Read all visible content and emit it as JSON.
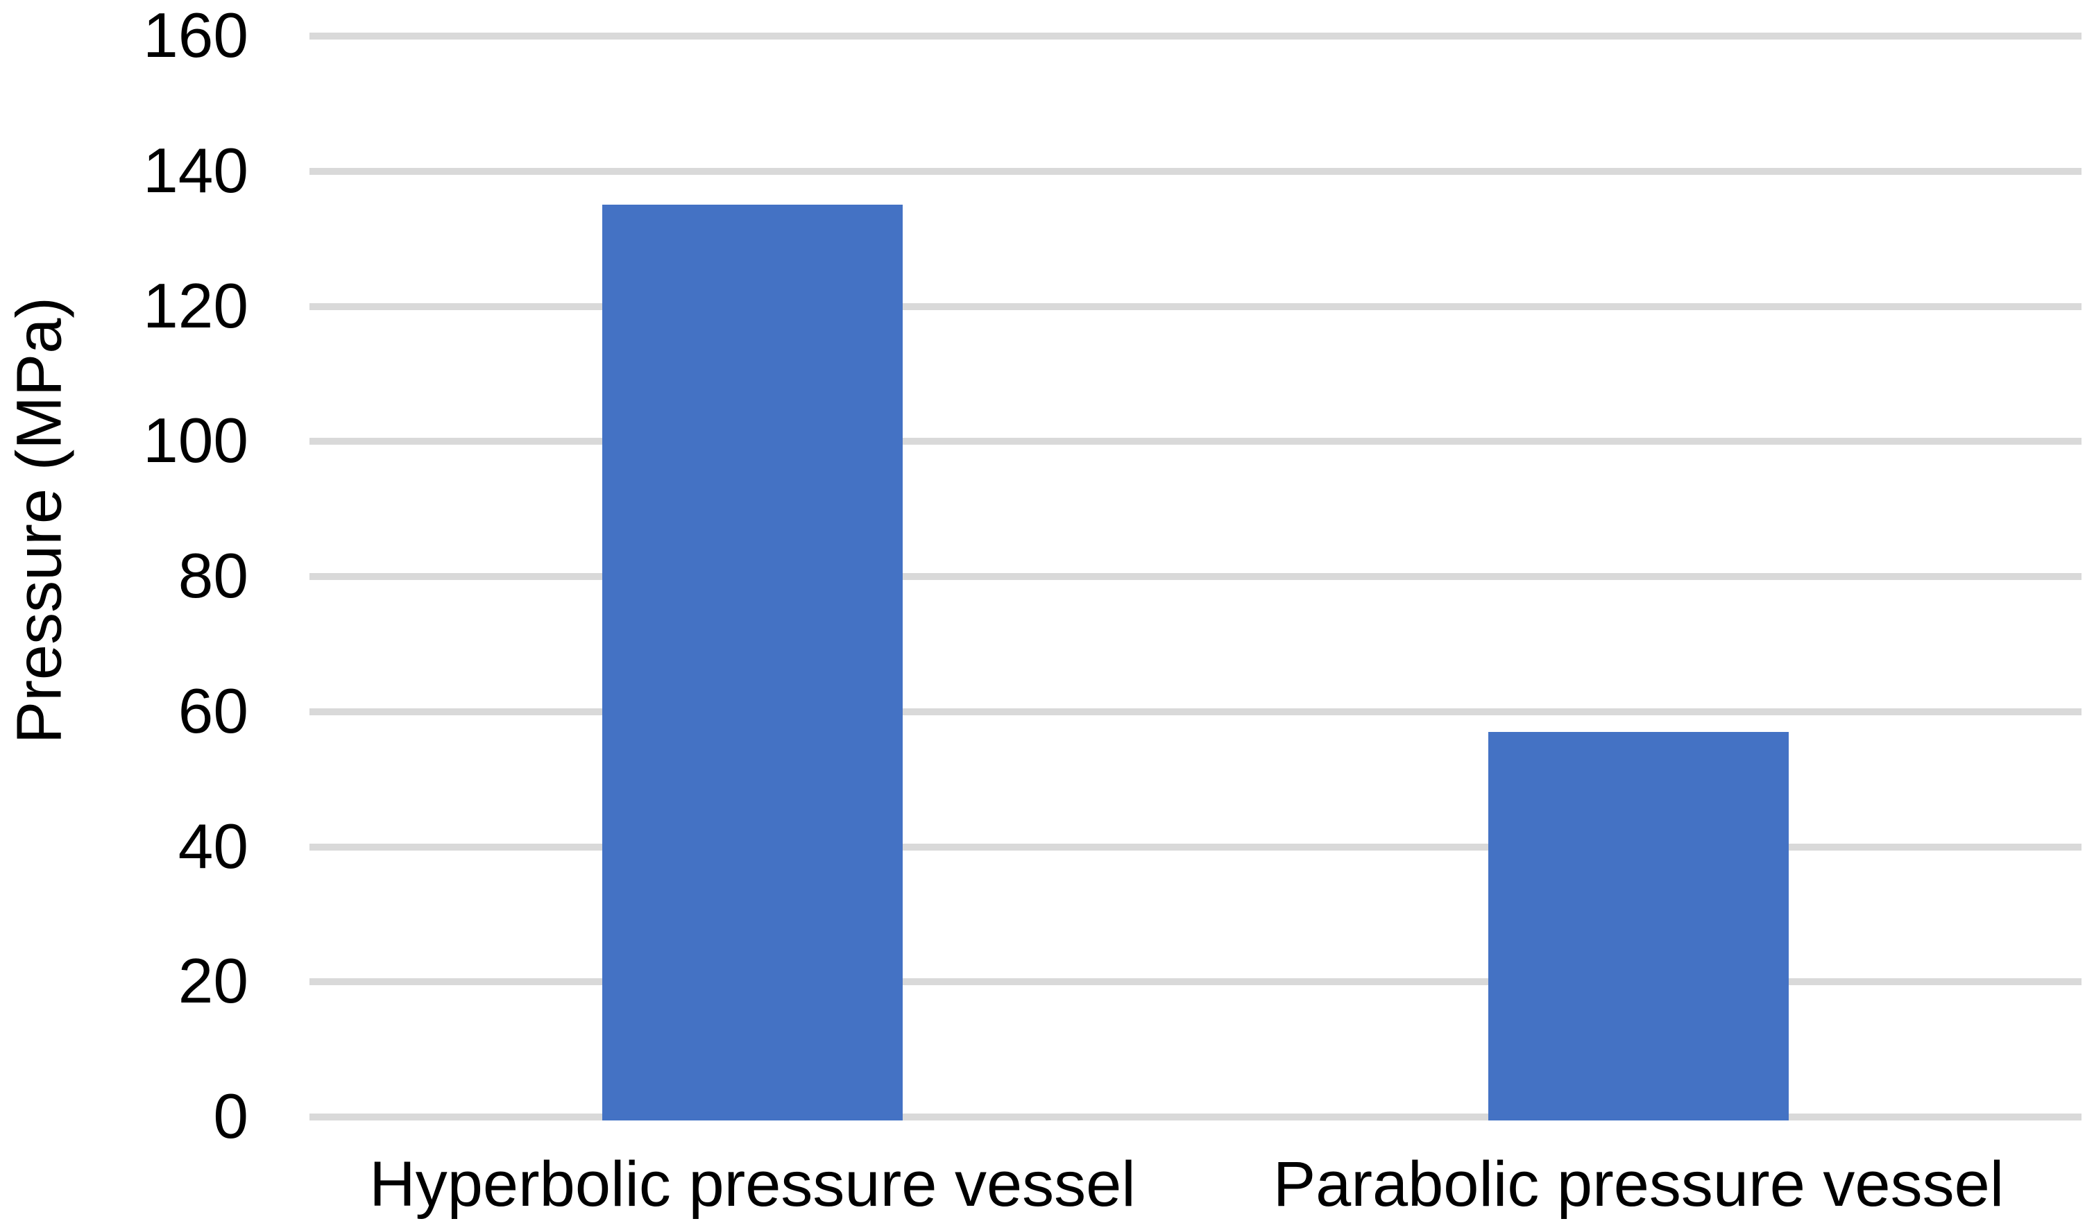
{
  "chart_data": {
    "type": "bar",
    "categories": [
      "Hyperbolic pressure vessel",
      "Parabolic pressure vessel"
    ],
    "values": [
      135,
      57
    ],
    "ylabel": "Pressure (MPa)",
    "ylim": [
      0,
      160
    ],
    "yticks": [
      0,
      20,
      40,
      60,
      80,
      100,
      120,
      140,
      160
    ],
    "grid": true,
    "legend": "none",
    "colors": {
      "bar": "#4472C4",
      "gridline": "#D9D9D9",
      "text": "#000000",
      "background": "#FFFFFF"
    }
  }
}
